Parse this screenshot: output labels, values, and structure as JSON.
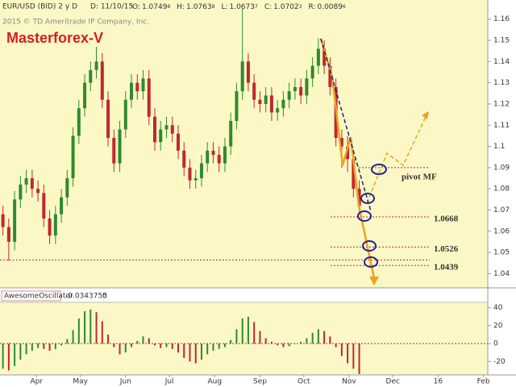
{
  "header": {
    "symbol": "EUR/USD (BID) 2 y D",
    "date": "D: 11/10/15",
    "quotes": [
      {
        "label": "O:",
        "value": "1.0749",
        "pip": "8"
      },
      {
        "label": "H:",
        "value": "1.0763",
        "pip": "8"
      },
      {
        "label": "L:",
        "value": "1.0673",
        "pip": "7"
      },
      {
        "label": "C:",
        "value": "1.0702",
        "pip": "3"
      },
      {
        "label": "R:",
        "value": "0.0089",
        "pip": "6"
      }
    ],
    "copyright": "2015 © TD Ameritrade IP Company, Inc."
  },
  "chart_data": [
    {
      "type": "candlestick",
      "title": "Masterforex-V",
      "x": [
        8,
        12,
        16,
        20,
        24,
        28,
        32,
        36,
        40,
        44,
        48,
        52,
        56,
        60,
        64,
        68,
        72,
        76,
        80,
        84,
        88,
        92,
        96,
        100,
        104,
        108,
        112,
        116,
        120,
        124,
        128,
        132,
        136,
        140,
        144,
        148,
        152,
        156,
        160,
        164,
        168,
        172,
        176,
        180,
        184,
        188,
        192,
        196,
        200,
        204,
        208,
        212,
        216,
        220,
        224,
        228,
        232,
        236,
        240,
        244,
        248,
        252
      ],
      "open": [
        1.068,
        1.062,
        1.055,
        1.075,
        1.082,
        1.085,
        1.08,
        1.078,
        1.066,
        1.058,
        1.068,
        1.076,
        1.085,
        1.105,
        1.118,
        1.13,
        1.136,
        1.14,
        1.122,
        1.104,
        1.092,
        1.108,
        1.122,
        1.13,
        1.126,
        1.132,
        1.114,
        1.102,
        1.108,
        1.11,
        1.106,
        1.098,
        1.09,
        1.084,
        1.085,
        1.092,
        1.098,
        1.096,
        1.092,
        1.1,
        1.112,
        1.126,
        1.14,
        1.13,
        1.122,
        1.12,
        1.124,
        1.116,
        1.118,
        1.122,
        1.126,
        1.128,
        1.124,
        1.132,
        1.138,
        1.146,
        1.138,
        1.128,
        1.104,
        1.1,
        1.094,
        1.08
      ],
      "high": [
        1.072,
        1.066,
        1.079,
        1.086,
        1.089,
        1.089,
        1.084,
        1.082,
        1.07,
        1.072,
        1.08,
        1.089,
        1.109,
        1.122,
        1.134,
        1.14,
        1.147,
        1.144,
        1.126,
        1.108,
        1.112,
        1.126,
        1.134,
        1.134,
        1.136,
        1.136,
        1.118,
        1.112,
        1.114,
        1.114,
        1.11,
        1.102,
        1.094,
        1.089,
        1.096,
        1.102,
        1.102,
        1.1,
        1.104,
        1.116,
        1.13,
        1.165,
        1.144,
        1.134,
        1.126,
        1.128,
        1.128,
        1.122,
        1.126,
        1.13,
        1.132,
        1.132,
        1.136,
        1.142,
        1.151,
        1.15,
        1.142,
        1.132,
        1.108,
        1.105,
        1.098,
        1.084
      ],
      "low": [
        1.058,
        1.046,
        1.051,
        1.071,
        1.078,
        1.076,
        1.074,
        1.062,
        1.054,
        1.054,
        1.064,
        1.072,
        1.081,
        1.101,
        1.114,
        1.126,
        1.132,
        1.118,
        1.1,
        1.088,
        1.088,
        1.104,
        1.118,
        1.122,
        1.122,
        1.11,
        1.098,
        1.098,
        1.104,
        1.102,
        1.094,
        1.086,
        1.08,
        1.08,
        1.081,
        1.088,
        1.092,
        1.088,
        1.088,
        1.096,
        1.108,
        1.122,
        1.126,
        1.118,
        1.116,
        1.116,
        1.112,
        1.112,
        1.114,
        1.118,
        1.122,
        1.12,
        1.12,
        1.128,
        1.134,
        1.134,
        1.124,
        1.1,
        1.09,
        1.088,
        1.076,
        1.068
      ],
      "close": [
        1.062,
        1.055,
        1.075,
        1.082,
        1.085,
        1.08,
        1.078,
        1.066,
        1.058,
        1.068,
        1.076,
        1.085,
        1.105,
        1.118,
        1.13,
        1.136,
        1.14,
        1.122,
        1.104,
        1.092,
        1.108,
        1.122,
        1.13,
        1.126,
        1.132,
        1.114,
        1.102,
        1.108,
        1.11,
        1.106,
        1.098,
        1.09,
        1.084,
        1.085,
        1.092,
        1.098,
        1.096,
        1.092,
        1.1,
        1.112,
        1.126,
        1.14,
        1.13,
        1.122,
        1.12,
        1.124,
        1.116,
        1.118,
        1.122,
        1.126,
        1.128,
        1.124,
        1.132,
        1.138,
        1.146,
        1.138,
        1.128,
        1.104,
        1.1,
        1.094,
        1.08,
        1.072
      ],
      "up_color": "#2e8b2e",
      "down_color": "#c0282d",
      "xlim": [
        6,
        340
      ],
      "ylim": [
        1.0341,
        1.1652
      ],
      "yticks": [
        1.04,
        1.05,
        1.06,
        1.07,
        1.08,
        1.09,
        1.1,
        1.11,
        1.12,
        1.13,
        1.14,
        1.15,
        1.16
      ],
      "levels": [
        1.0668,
        1.0526,
        1.0439
      ],
      "support": 1.0465,
      "pivot": {
        "value": 1.09,
        "label": "pivot MF"
      },
      "level_color": "#c0282d",
      "label_color": "#2e8b2e"
    },
    {
      "type": "bar",
      "title": "AwesomeOscillator",
      "readout": "-0.0343755",
      "readout_zero": 0,
      "x": [
        8,
        12,
        16,
        20,
        24,
        28,
        32,
        36,
        40,
        44,
        48,
        52,
        56,
        60,
        64,
        68,
        72,
        76,
        80,
        84,
        88,
        92,
        96,
        100,
        104,
        108,
        112,
        116,
        120,
        124,
        128,
        132,
        136,
        140,
        144,
        148,
        152,
        156,
        160,
        164,
        168,
        172,
        176,
        180,
        184,
        188,
        192,
        196,
        200,
        204,
        208,
        212,
        216,
        220,
        224,
        228,
        232,
        236,
        240,
        244,
        248,
        252
      ],
      "values": [
        -28,
        -30,
        -25,
        -18,
        -12,
        -8,
        -5,
        -6,
        -8,
        -6,
        -2,
        5,
        15,
        28,
        36,
        38,
        35,
        25,
        10,
        -4,
        -12,
        -10,
        -4,
        3,
        8,
        6,
        -2,
        -5,
        -4,
        -6,
        -10,
        -16,
        -20,
        -22,
        -18,
        -12,
        -8,
        -6,
        -4,
        4,
        16,
        28,
        30,
        24,
        14,
        6,
        2,
        -2,
        -4,
        -3,
        0,
        2,
        6,
        12,
        16,
        14,
        8,
        -4,
        -14,
        -22,
        -28,
        -34
      ],
      "up_color": "#2e8b2e",
      "down_color": "#c0282d",
      "xlim": [
        6,
        340
      ],
      "ylim": [
        -35,
        46
      ],
      "yticks": [
        -20,
        0,
        20,
        40
      ],
      "xticks": [
        {
          "value": 31,
          "label": "Apr"
        },
        {
          "value": 61,
          "label": "May"
        },
        {
          "value": 92,
          "label": "Jun"
        },
        {
          "value": 122,
          "label": "Jul"
        },
        {
          "value": 153,
          "label": "Aug"
        },
        {
          "value": 184,
          "label": "Sep"
        },
        {
          "value": 214,
          "label": "Oct"
        },
        {
          "value": 245,
          "label": "Nov"
        },
        {
          "value": 275,
          "label": "Dec"
        },
        {
          "value": 306,
          "label": "16"
        },
        {
          "value": 337,
          "label": "Feb"
        }
      ]
    }
  ]
}
